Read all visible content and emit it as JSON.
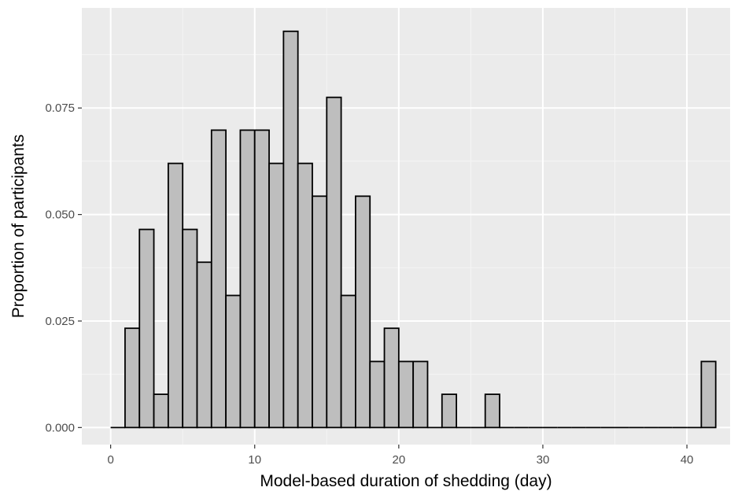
{
  "chart_data": {
    "type": "bar",
    "subtype": "histogram",
    "title": "",
    "xlabel": "Model-based duration of shedding (day)",
    "ylabel": "Proportion of participants",
    "xlim": [
      -2,
      43
    ],
    "ylim": [
      -0.004,
      0.0985
    ],
    "x_ticks": [
      0,
      10,
      20,
      30,
      40
    ],
    "x_tick_labels": [
      "0",
      "10",
      "20",
      "30",
      "40"
    ],
    "y_ticks": [
      0,
      0.025,
      0.05,
      0.075
    ],
    "y_tick_labels": [
      "0.000",
      "0.025",
      "0.050",
      "0.075"
    ],
    "bin_width": 1,
    "bin_start": 0,
    "values": [
      0,
      0.0233,
      0.0465,
      0.0078,
      0.062,
      0.0465,
      0.0388,
      0.0698,
      0.031,
      0.0698,
      0.0698,
      0.062,
      0.093,
      0.062,
      0.0543,
      0.0775,
      0.031,
      0.0543,
      0.0155,
      0.0233,
      0.0155,
      0.0155,
      0,
      0.0078,
      0,
      0,
      0.0078,
      0,
      0,
      0,
      0,
      0,
      0,
      0,
      0,
      0,
      0,
      0,
      0,
      0,
      0,
      0.0155
    ],
    "grid": true,
    "legend": "none",
    "colors": {
      "panel_background": "#ebebeb",
      "grid_major": "#ffffff",
      "grid_minor": "#f5f5f5",
      "bar_fill": "#bebebe",
      "bar_outline": "#000000",
      "tick_text": "#4d4d4d"
    }
  }
}
